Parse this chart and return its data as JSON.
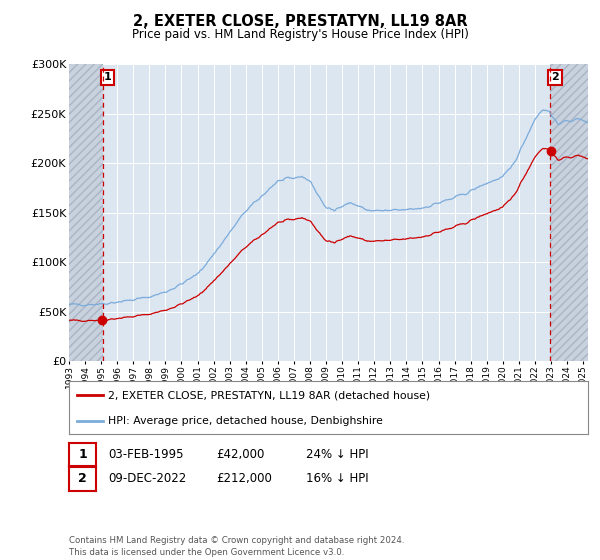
{
  "title": "2, EXETER CLOSE, PRESTATYN, LL19 8AR",
  "subtitle": "Price paid vs. HM Land Registry's House Price Index (HPI)",
  "legend_label_red": "2, EXETER CLOSE, PRESTATYN, LL19 8AR (detached house)",
  "legend_label_blue": "HPI: Average price, detached house, Denbighshire",
  "sale1_date": "03-FEB-1995",
  "sale1_price": 42000,
  "sale1_hpi_pct": "24% ↓ HPI",
  "sale2_date": "09-DEC-2022",
  "sale2_price": 212000,
  "sale2_hpi_pct": "16% ↓ HPI",
  "sale1_label": "1",
  "sale2_label": "2",
  "footnote": "Contains HM Land Registry data © Crown copyright and database right 2024.\nThis data is licensed under the Open Government Licence v3.0.",
  "red_color": "#cc0000",
  "blue_color": "#7aabdb",
  "bg_color": "#dce6f1",
  "grid_color": "#ffffff",
  "ylim": [
    0,
    300000
  ],
  "yticks": [
    0,
    50000,
    100000,
    150000,
    200000,
    250000,
    300000
  ],
  "sale1_x_year": 1995.09,
  "sale2_x_year": 2022.94,
  "xmin": 1993.0,
  "xmax": 2025.3
}
